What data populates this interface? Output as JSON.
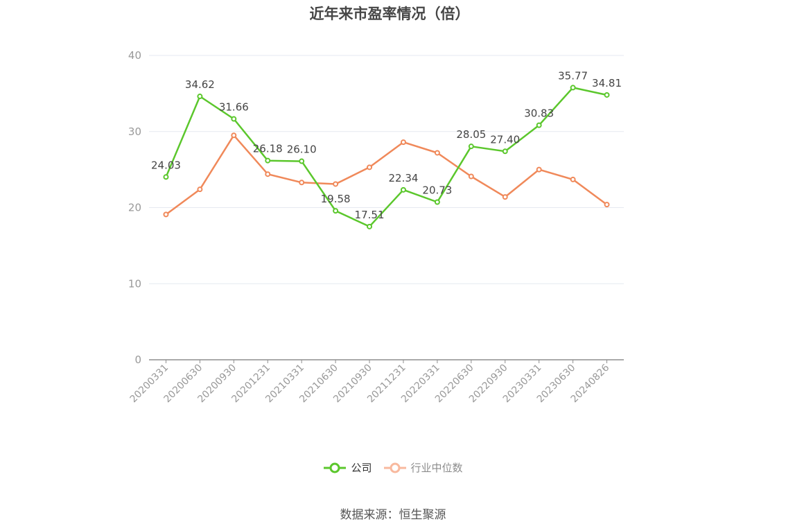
{
  "title": "近年来市盈率情况（倍）",
  "source": "数据来源：恒生聚源",
  "legend": {
    "company_label": "公司",
    "industry_label": "行业中位数"
  },
  "colors": {
    "company": "#5bc72c",
    "industry": "#f0895a",
    "industry_legend": "#f8b99e",
    "grid": "#e6e9f0",
    "axis": "#8e8e8e",
    "tick_text": "#999999",
    "label_text": "#444444"
  },
  "chart_data": {
    "type": "line",
    "title": "近年来市盈率情况（倍）",
    "xlabel": "",
    "ylabel": "",
    "ylim": [
      0,
      40
    ],
    "yticks": [
      0,
      10,
      20,
      30,
      40
    ],
    "grid": true,
    "legend_position": "bottom-center",
    "categories": [
      "20200331",
      "20200630",
      "20200930",
      "20201231",
      "20210331",
      "20210630",
      "20210930",
      "20211231",
      "20220331",
      "20220630",
      "20220930",
      "20230331",
      "20230630",
      "20240826"
    ],
    "series": [
      {
        "name": "公司",
        "values": [
          24.03,
          34.62,
          31.66,
          26.18,
          26.1,
          19.58,
          17.51,
          22.34,
          20.73,
          28.05,
          27.4,
          30.83,
          35.77,
          34.81
        ],
        "labels": [
          "24.03",
          "34.62",
          "31.66",
          "26.18",
          "26.10",
          "19.58",
          "17.51",
          "22.34",
          "20.73",
          "28.05",
          "27.40",
          "30.83",
          "35.77",
          "34.81"
        ],
        "show_labels": true
      },
      {
        "name": "行业中位数",
        "values": [
          19.1,
          22.4,
          29.5,
          24.4,
          23.3,
          23.1,
          25.3,
          28.6,
          27.2,
          24.1,
          21.4,
          25.0,
          23.7,
          20.4
        ],
        "show_labels": false
      }
    ]
  }
}
